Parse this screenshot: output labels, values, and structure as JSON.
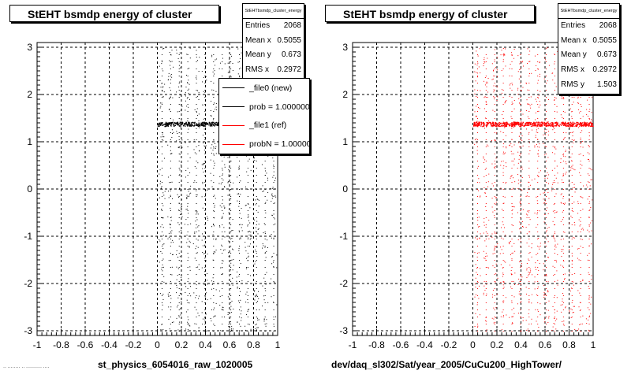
{
  "left": {
    "title": "StEHT bsmdp energy of cluster",
    "stats_name": "StEHTbsmdp_cluster_energy",
    "stats": [
      {
        "label": "Entries",
        "value": "2068"
      },
      {
        "label": "Mean x",
        "value": "0.5055"
      },
      {
        "label": "Mean y",
        "value": "0.673"
      },
      {
        "label": "RMS x",
        "value": "0.2972"
      }
    ],
    "legend": [
      {
        "label": "_file0 (new)",
        "color": "#000000"
      },
      {
        "label": "prob = 1.000000",
        "color": "#000000"
      },
      {
        "label": "_file1 (ref)",
        "color": "#ff0000"
      },
      {
        "label": "probN = 1.000000",
        "color": "#ff0000"
      }
    ],
    "xlabel": "st_physics_6054016_raw_1020005",
    "footnote": "·· ········ ·· ·········· ····"
  },
  "right": {
    "title": "StEHT bsmdp energy of cluster",
    "stats_name": "StEHTbsmdp_cluster_energy",
    "stats": [
      {
        "label": "Entries",
        "value": "2068"
      },
      {
        "label": "Mean x",
        "value": "0.5055"
      },
      {
        "label": "Mean y",
        "value": "0.673"
      },
      {
        "label": "RMS x",
        "value": "0.2972"
      },
      {
        "label": "RMS y",
        "value": "1.503"
      }
    ],
    "xlabel": "dev/daq_sl302/Sat/year_2005/CuCu200_HighTower/"
  },
  "chart_data": [
    {
      "type": "scatter",
      "title": "StEHT bsmdp energy of cluster",
      "xlabel": "st_physics_6054016_raw_1020005",
      "ylabel": "",
      "xlim": [
        -1,
        1
      ],
      "ylim": [
        -3.1,
        3.1
      ],
      "x_ticks": [
        "-1",
        "-0.8",
        "-0.6",
        "-0.4",
        "-0.2",
        "0",
        "0.2",
        "0.4",
        "0.6",
        "0.8",
        "1"
      ],
      "y_ticks": [
        "-3",
        "-2",
        "-1",
        "0",
        "1",
        "2",
        "3"
      ],
      "grid": true,
      "legend": "top-right",
      "series": [
        {
          "name": "_file0 (new)",
          "color": "#000000",
          "band": {
            "x": [
              0.0,
              1.0
            ],
            "y": 1.38
          },
          "x_range": [
            0.0,
            1.0
          ],
          "y_range": [
            -3.0,
            3.0
          ]
        }
      ]
    },
    {
      "type": "scatter",
      "title": "StEHT bsmdp energy of cluster",
      "xlabel": "dev/daq_sl302/Sat/year_2005/CuCu200_HighTower/",
      "ylabel": "",
      "xlim": [
        -1,
        1
      ],
      "ylim": [
        -3.1,
        3.1
      ],
      "x_ticks": [
        "-1",
        "-0.8",
        "-0.6",
        "-0.4",
        "-0.2",
        "0",
        "0.2",
        "0.4",
        "0.6",
        "0.8",
        "1"
      ],
      "y_ticks": [
        "-3",
        "-2",
        "-1",
        "0",
        "1",
        "2",
        "3"
      ],
      "grid": true,
      "series": [
        {
          "name": "_file1 (ref)",
          "color": "#ff0000",
          "band": {
            "x": [
              0.0,
              1.0
            ],
            "y": 1.38
          },
          "x_range": [
            0.0,
            1.0
          ],
          "y_range": [
            -3.0,
            3.0
          ]
        }
      ]
    }
  ]
}
